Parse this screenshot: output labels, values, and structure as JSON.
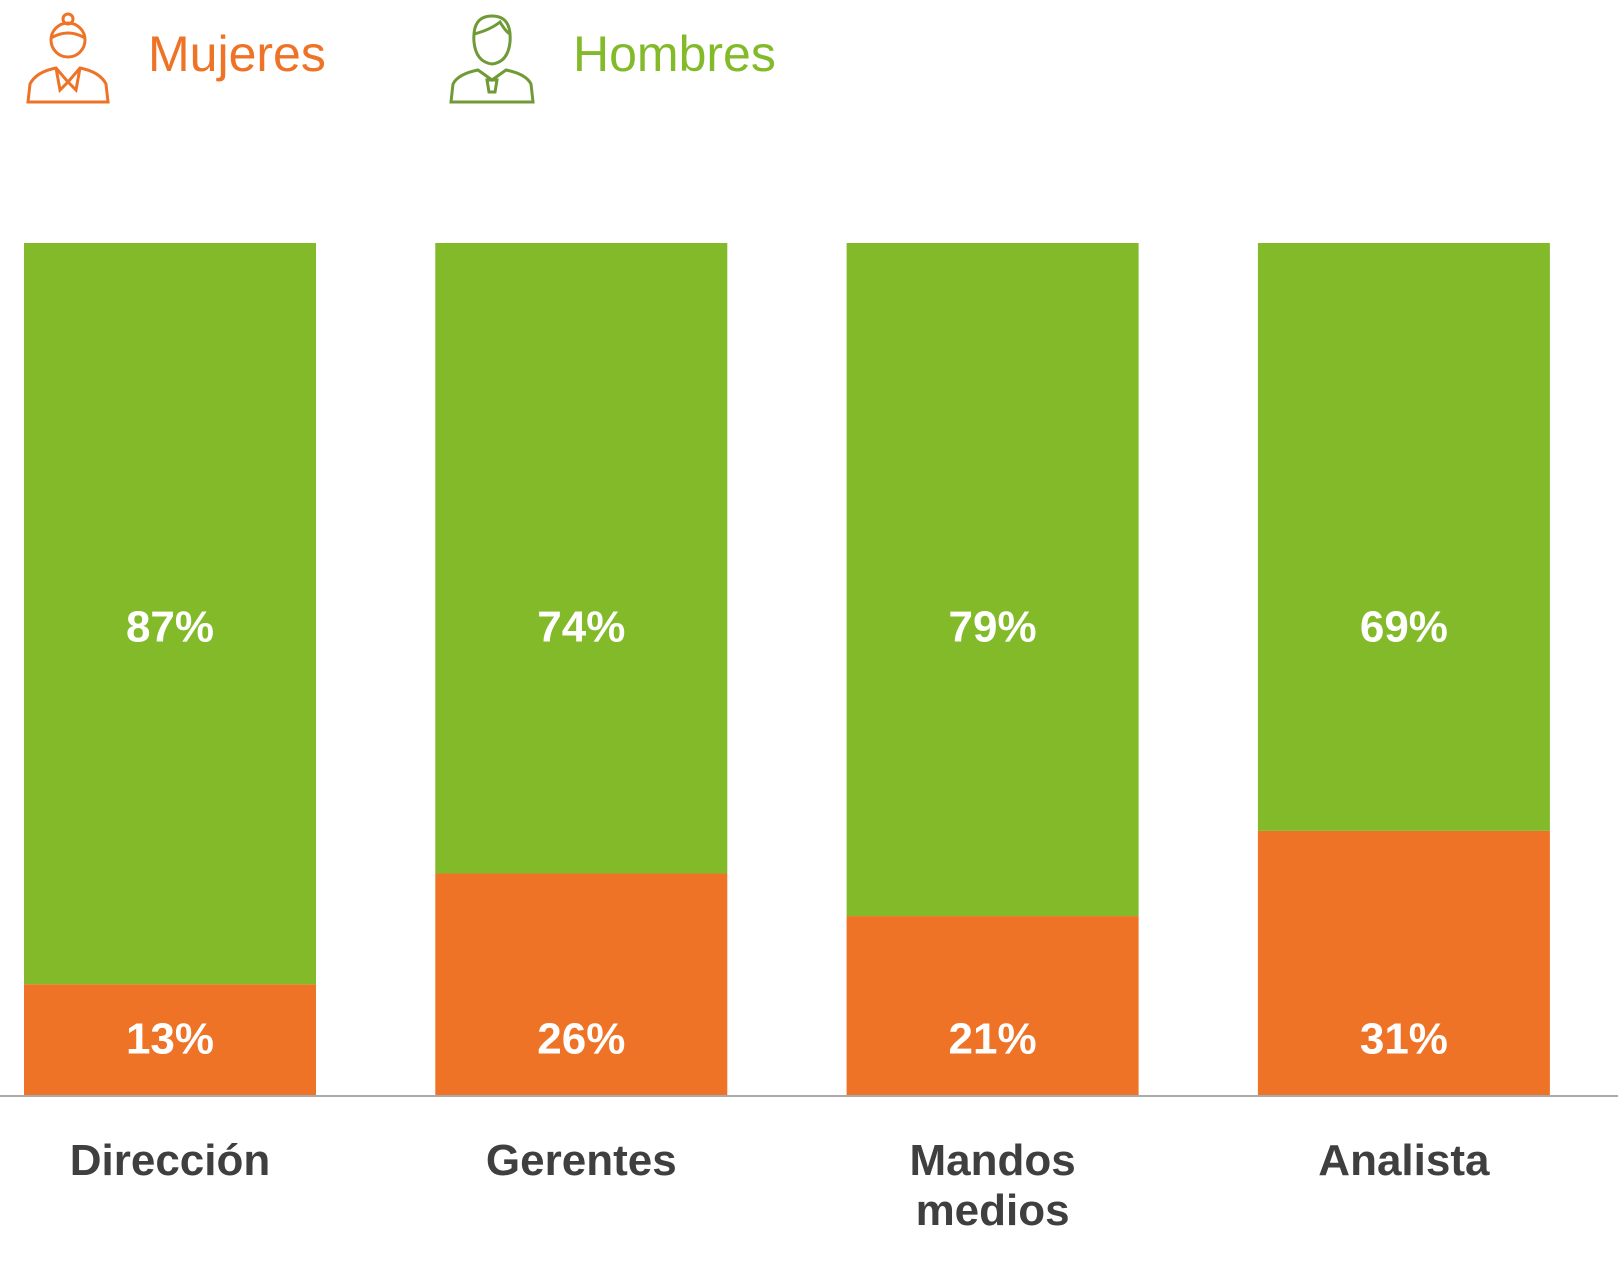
{
  "chart_data": {
    "type": "stacked_bar",
    "categories": [
      "Dirección",
      "Gerentes",
      "Mandos medios",
      "Analista"
    ],
    "series": [
      {
        "name": "Mujeres",
        "color": "#ee7326",
        "values": [
          13,
          26,
          21,
          31
        ],
        "value_labels": [
          "13%",
          "26%",
          "21%",
          "31%"
        ]
      },
      {
        "name": "Hombres",
        "color": "#83ba29",
        "values": [
          87,
          74,
          79,
          69
        ],
        "value_labels": [
          "87%",
          "74%",
          "79%",
          "69%"
        ]
      }
    ],
    "ylim": [
      0,
      100
    ]
  }
}
